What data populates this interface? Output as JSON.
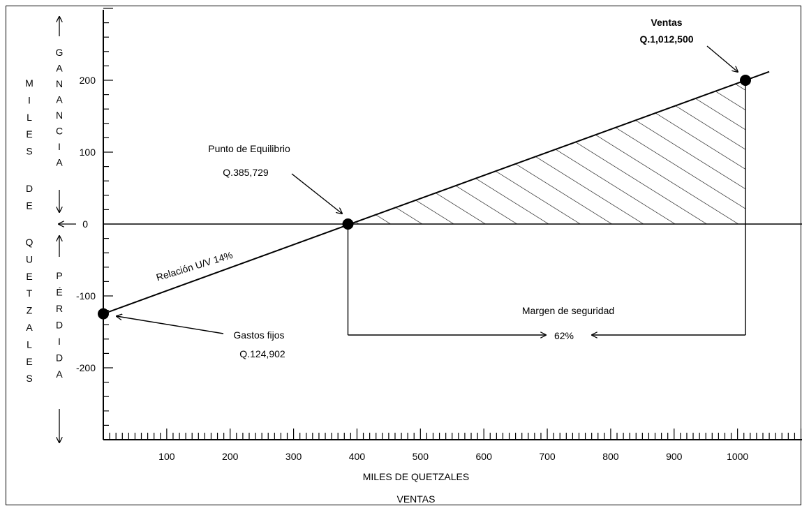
{
  "chart_data": {
    "type": "line",
    "title": "",
    "xlabel": "MILES DE QUETZALES",
    "xlabel2": "VENTAS",
    "ylabel_outer": "MILES DE QUETZALES",
    "ylabel_upper": "GANANCIA",
    "ylabel_lower": "PÉRDIDA",
    "xlim": [
      0,
      1100
    ],
    "ylim": [
      -300,
      300
    ],
    "x_ticks": [
      100,
      200,
      300,
      400,
      500,
      600,
      700,
      800,
      900,
      1000
    ],
    "y_ticks": [
      200,
      100,
      0,
      -100,
      -200
    ],
    "y_tick_labels": [
      "200",
      "100",
      "0",
      "-100",
      "-200"
    ],
    "series": [
      {
        "x": [
          0,
          385.729,
          1012.5,
          1050
        ],
        "y": [
          -124.902,
          0,
          200,
          212
        ]
      }
    ],
    "points": [
      {
        "x": 0,
        "y": -124.902
      },
      {
        "x": 385.729,
        "y": 0
      },
      {
        "x": 1012.5,
        "y": 200
      }
    ],
    "shaded_region": {
      "x_from": 385.729,
      "x_to": 1012.5,
      "pattern": "hatch"
    },
    "annotations": {
      "line_label": "Relación U/V 14%",
      "breakeven_title": "Punto de Equilibrio",
      "breakeven_value": "Q.385,729",
      "sales_title": "Ventas",
      "sales_value": "Q.1,012,500",
      "fixed_title": "Gastos fijos",
      "fixed_value": "Q.124,902",
      "margin_title": "Margen de seguridad",
      "margin_value": "62%"
    }
  }
}
